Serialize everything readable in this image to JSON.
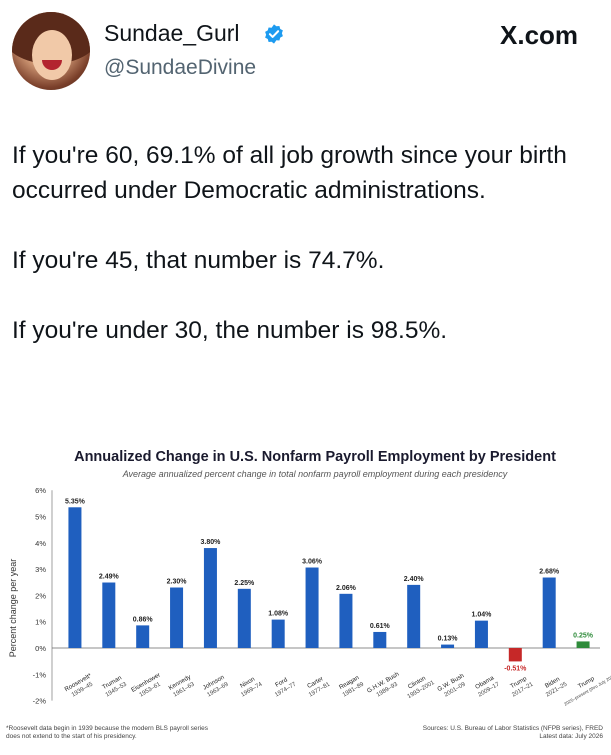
{
  "post": {
    "display_name": "Sundae_Gurl",
    "handle": "@SundaeDivine",
    "site": "X.com",
    "paragraphs": [
      "If you're 60, 69.1% of all job growth since your birth occurred under Democratic administrations.",
      "If you're 45, that number is 74.7%.",
      "If you're under 30, the number is 98.5%."
    ]
  },
  "colors": {
    "dem": "#1f5fbf",
    "rep_neg": "#c62828",
    "pos_small": "#2e8b3a",
    "verified": "#1d9bf0"
  },
  "chart_data": {
    "type": "bar",
    "title": "Annualized Change in U.S. Nonfarm Payroll Employment by President",
    "subtitle": "Average annualized percent change in total nonfarm payroll employment during each presidency",
    "ylabel": "Percent change per year",
    "ylim": [
      -2,
      6
    ],
    "yticks": [
      "-2%",
      "-1%",
      "0%",
      "1%",
      "2%",
      "3%",
      "4%",
      "5%",
      "6%"
    ],
    "categories": [
      {
        "name": "Roosevelt*",
        "years": "1939–45"
      },
      {
        "name": "Truman",
        "years": "1945–53"
      },
      {
        "name": "Eisenhower",
        "years": "1953–61"
      },
      {
        "name": "Kennedy",
        "years": "1961–63"
      },
      {
        "name": "Johnson",
        "years": "1963–69"
      },
      {
        "name": "Nixon",
        "years": "1969–74"
      },
      {
        "name": "Ford",
        "years": "1974–77"
      },
      {
        "name": "Carter",
        "years": "1977–81"
      },
      {
        "name": "Reagan",
        "years": "1981–89"
      },
      {
        "name": "G.H.W. Bush",
        "years": "1989–93"
      },
      {
        "name": "Clinton",
        "years": "1993–2001"
      },
      {
        "name": "G.W. Bush",
        "years": "2001–09"
      },
      {
        "name": "Obama",
        "years": "2009–17"
      },
      {
        "name": "Trump",
        "years": "2017–21"
      },
      {
        "name": "Biden",
        "years": "2021–25"
      },
      {
        "name": "Trump",
        "years": "2025–present (thru July 2026)"
      }
    ],
    "values": [
      5.35,
      2.49,
      0.86,
      2.3,
      3.8,
      2.25,
      1.08,
      3.06,
      2.06,
      0.61,
      2.4,
      0.13,
      1.04,
      -0.51,
      2.68,
      0.25
    ],
    "value_labels": [
      "5.35%",
      "2.49%",
      "0.86%",
      "2.30%",
      "3.80%",
      "2.25%",
      "1.08%",
      "3.06%",
      "2.06%",
      "0.61%",
      "2.40%",
      "0.13%",
      "1.04%",
      "-0.51%",
      "2.68%",
      "0.25%"
    ],
    "footnote": "*Roosevelt data begin in 1939 because the modern BLS payroll series does not extend to the start of his presidency.",
    "sources": "Sources: U.S. Bureau of Labor Statistics (NFPB series), FRED",
    "latest": "Latest data: July 2026",
    "grid": false,
    "legend": "none"
  }
}
